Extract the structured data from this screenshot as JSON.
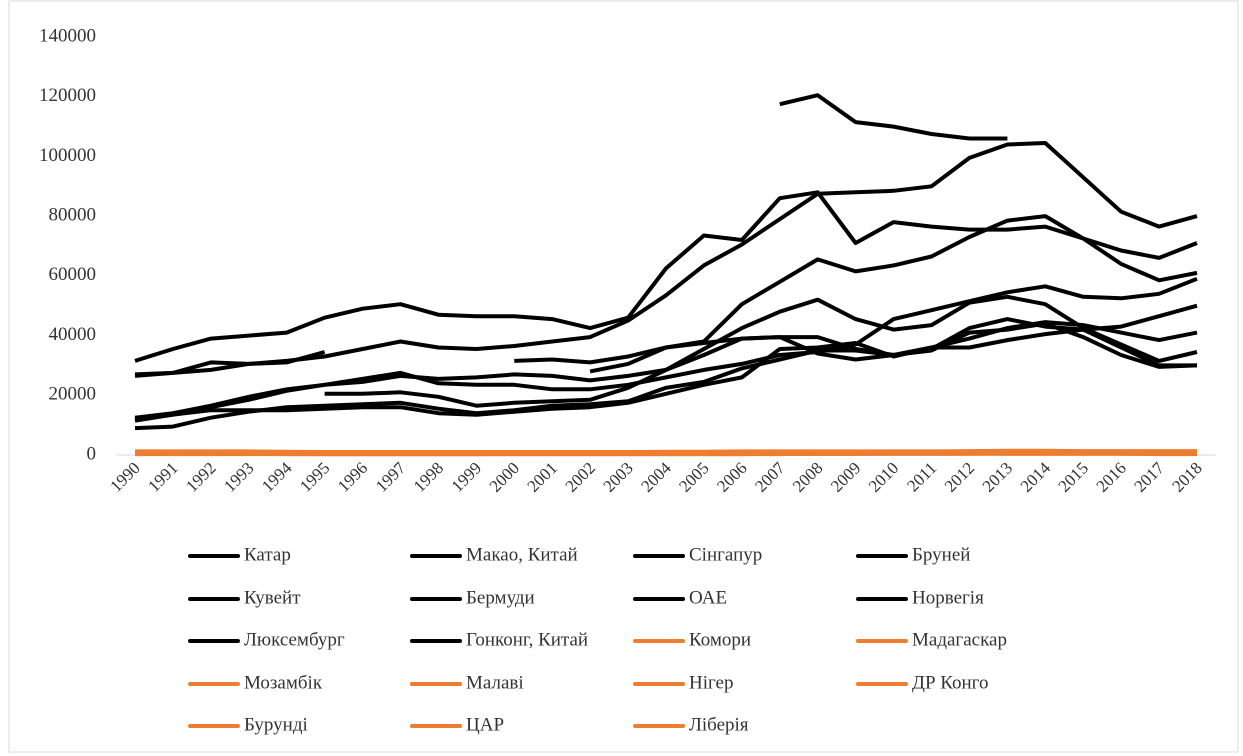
{
  "chart_data": {
    "type": "line",
    "categories": [
      1990,
      1991,
      1992,
      1993,
      1994,
      1995,
      1996,
      1997,
      1998,
      1999,
      2000,
      2001,
      2002,
      2003,
      2004,
      2005,
      2006,
      2007,
      2008,
      2009,
      2010,
      2011,
      2012,
      2013,
      2014,
      2015,
      2016,
      2017,
      2018
    ],
    "ylim": [
      0,
      140000
    ],
    "yticks": [
      0,
      20000,
      40000,
      60000,
      80000,
      100000,
      120000,
      140000
    ],
    "series": [
      {
        "name": "Катар",
        "color": "#000000",
        "values": [
          null,
          null,
          null,
          null,
          null,
          null,
          null,
          null,
          null,
          null,
          null,
          null,
          null,
          null,
          null,
          null,
          null,
          117500,
          120500,
          111500,
          110000,
          107500,
          106000,
          106000,
          null,
          null,
          null,
          null,
          null
        ]
      },
      {
        "name": "Макао, Китай",
        "color": "#000000",
        "values": [
          null,
          null,
          null,
          null,
          null,
          null,
          null,
          null,
          null,
          null,
          null,
          null,
          28000,
          30500,
          36000,
          38000,
          50500,
          58000,
          65500,
          61500,
          63500,
          66500,
          73000,
          78500,
          80000,
          72500,
          64000,
          58500,
          61000
        ]
      },
      {
        "name": "Сінгапур",
        "color": "#000000",
        "values": [
          27000,
          27500,
          28500,
          30500,
          31500,
          33000,
          35500,
          38000,
          36000,
          35500,
          36500,
          38000,
          39500,
          45000,
          53500,
          63500,
          70500,
          79000,
          87500,
          88000,
          88500,
          90000,
          99500,
          104000,
          104500,
          93000,
          81500,
          76500,
          80000
        ]
      },
      {
        "name": "Бруней",
        "color": "#000000",
        "values": [
          31500,
          35500,
          39000,
          40000,
          41000,
          46000,
          49000,
          50500,
          47000,
          46500,
          46500,
          45500,
          42500,
          46000,
          62500,
          73500,
          72000,
          86000,
          88000,
          71000,
          78000,
          76500,
          75500,
          75500,
          76500,
          72500,
          68500,
          66000,
          71000
        ]
      },
      {
        "name": "Кувейт",
        "color": "#000000",
        "values": [
          26500,
          27500,
          31000,
          30500,
          31000,
          34500,
          null,
          null,
          null,
          null,
          31500,
          32000,
          31000,
          33000,
          36000,
          37500,
          39000,
          39500,
          39500,
          35500,
          33500,
          35500,
          42500,
          45500,
          43000,
          42000,
          43000,
          46500,
          50000
        ]
      },
      {
        "name": "Бермуди",
        "color": "#000000",
        "values": [
          null,
          null,
          null,
          null,
          null,
          20500,
          20500,
          21000,
          19500,
          16500,
          17500,
          18000,
          18500,
          22500,
          28500,
          35500,
          42500,
          48000,
          52000,
          45500,
          42000,
          43500,
          51000,
          53000,
          50500,
          42500,
          37000,
          31500,
          34500
        ]
      },
      {
        "name": "ОАЕ",
        "color": "#000000",
        "values": [
          12500,
          14000,
          16500,
          19500,
          22000,
          23500,
          25500,
          27500,
          24000,
          23500,
          23500,
          22000,
          22000,
          23500,
          26000,
          28500,
          30500,
          33500,
          34500,
          37000,
          45500,
          48500,
          51500,
          54500,
          56500,
          53000,
          52500,
          54000,
          59000
        ]
      },
      {
        "name": "Норвегія",
        "color": "#000000",
        "values": [
          12000,
          13500,
          16000,
          18500,
          21500,
          23500,
          24500,
          26500,
          25500,
          26000,
          27000,
          26500,
          25000,
          26500,
          28500,
          33500,
          39000,
          39500,
          34000,
          32000,
          33500,
          36000,
          39000,
          42500,
          44500,
          43500,
          41000,
          38500,
          41000
        ]
      },
      {
        "name": "Люксембург",
        "color": "#000000",
        "values": [
          11500,
          13500,
          15000,
          15000,
          15000,
          15500,
          16000,
          16000,
          14000,
          13500,
          14500,
          15500,
          16000,
          17500,
          20500,
          23500,
          26000,
          35500,
          36000,
          37500,
          33000,
          36000,
          36000,
          38500,
          40500,
          42000,
          36000,
          30000,
          30000
        ]
      },
      {
        "name": "Гонконг, Китай",
        "color": "#000000",
        "values": [
          9000,
          9500,
          12500,
          14500,
          16000,
          16500,
          17000,
          17500,
          15500,
          14000,
          15000,
          16500,
          17000,
          18000,
          22500,
          24500,
          29000,
          32000,
          35000,
          35000,
          33500,
          35000,
          41000,
          42000,
          44000,
          39500,
          33500,
          29500,
          30000
        ]
      },
      {
        "name": "Комори",
        "color": "#ed7d31",
        "values": [
          1200,
          1200,
          1200,
          1200,
          1100,
          1000,
          1000,
          1000,
          1000,
          1000,
          1000,
          1000,
          1000,
          1000,
          1100,
          1100,
          1200,
          1200,
          1200,
          1200,
          1200,
          1200,
          1300,
          1400,
          1400,
          1300,
          1300,
          1300,
          1300
        ]
      },
      {
        "name": "Мадагаскар",
        "color": "#ed7d31",
        "values": [
          900,
          900,
          800,
          800,
          700,
          700,
          700,
          700,
          700,
          700,
          700,
          700,
          600,
          700,
          700,
          800,
          800,
          900,
          900,
          900,
          900,
          900,
          900,
          900,
          900,
          900,
          900,
          900,
          900
        ]
      },
      {
        "name": "Мозамбік",
        "color": "#ed7d31",
        "values": [
          300,
          300,
          300,
          300,
          300,
          300,
          300,
          300,
          300,
          300,
          400,
          400,
          400,
          400,
          500,
          500,
          500,
          600,
          600,
          600,
          600,
          600,
          700,
          700,
          700,
          700,
          600,
          600,
          600
        ]
      },
      {
        "name": "Малаві",
        "color": "#ed7d31",
        "values": [
          400,
          400,
          400,
          400,
          300,
          300,
          300,
          300,
          300,
          300,
          300,
          300,
          300,
          300,
          300,
          300,
          300,
          400,
          400,
          400,
          500,
          500,
          500,
          500,
          500,
          500,
          500,
          500,
          500
        ]
      },
      {
        "name": "Нігер",
        "color": "#ed7d31",
        "values": [
          500,
          500,
          500,
          500,
          400,
          400,
          400,
          400,
          400,
          400,
          400,
          400,
          400,
          400,
          400,
          400,
          400,
          400,
          400,
          400,
          500,
          500,
          500,
          500,
          500,
          500,
          500,
          500,
          500
        ]
      },
      {
        "name": "ДР Конго",
        "color": "#ed7d31",
        "values": [
          800,
          700,
          600,
          500,
          400,
          300,
          300,
          300,
          300,
          300,
          300,
          300,
          300,
          300,
          300,
          300,
          300,
          300,
          400,
          400,
          400,
          400,
          400,
          500,
          500,
          500,
          500,
          500,
          500
        ]
      },
      {
        "name": "Бурунді",
        "color": "#ed7d31",
        "values": [
          600,
          600,
          600,
          500,
          500,
          500,
          400,
          400,
          400,
          400,
          400,
          400,
          400,
          400,
          400,
          400,
          400,
          400,
          400,
          400,
          400,
          400,
          400,
          400,
          400,
          400,
          400,
          300,
          300
        ]
      },
      {
        "name": "ЦАР",
        "color": "#ed7d31",
        "values": [
          900,
          900,
          800,
          800,
          800,
          800,
          700,
          700,
          700,
          700,
          700,
          700,
          700,
          700,
          700,
          700,
          700,
          700,
          700,
          700,
          700,
          700,
          700,
          400,
          400,
          400,
          400,
          400,
          500
        ]
      },
      {
        "name": "Ліберія",
        "color": "#ed7d31",
        "values": [
          1200,
          1000,
          900,
          800,
          600,
          500,
          500,
          500,
          500,
          500,
          600,
          600,
          600,
          500,
          600,
          600,
          700,
          700,
          700,
          700,
          700,
          800,
          900,
          900,
          900,
          800,
          800,
          800,
          700
        ]
      }
    ]
  }
}
